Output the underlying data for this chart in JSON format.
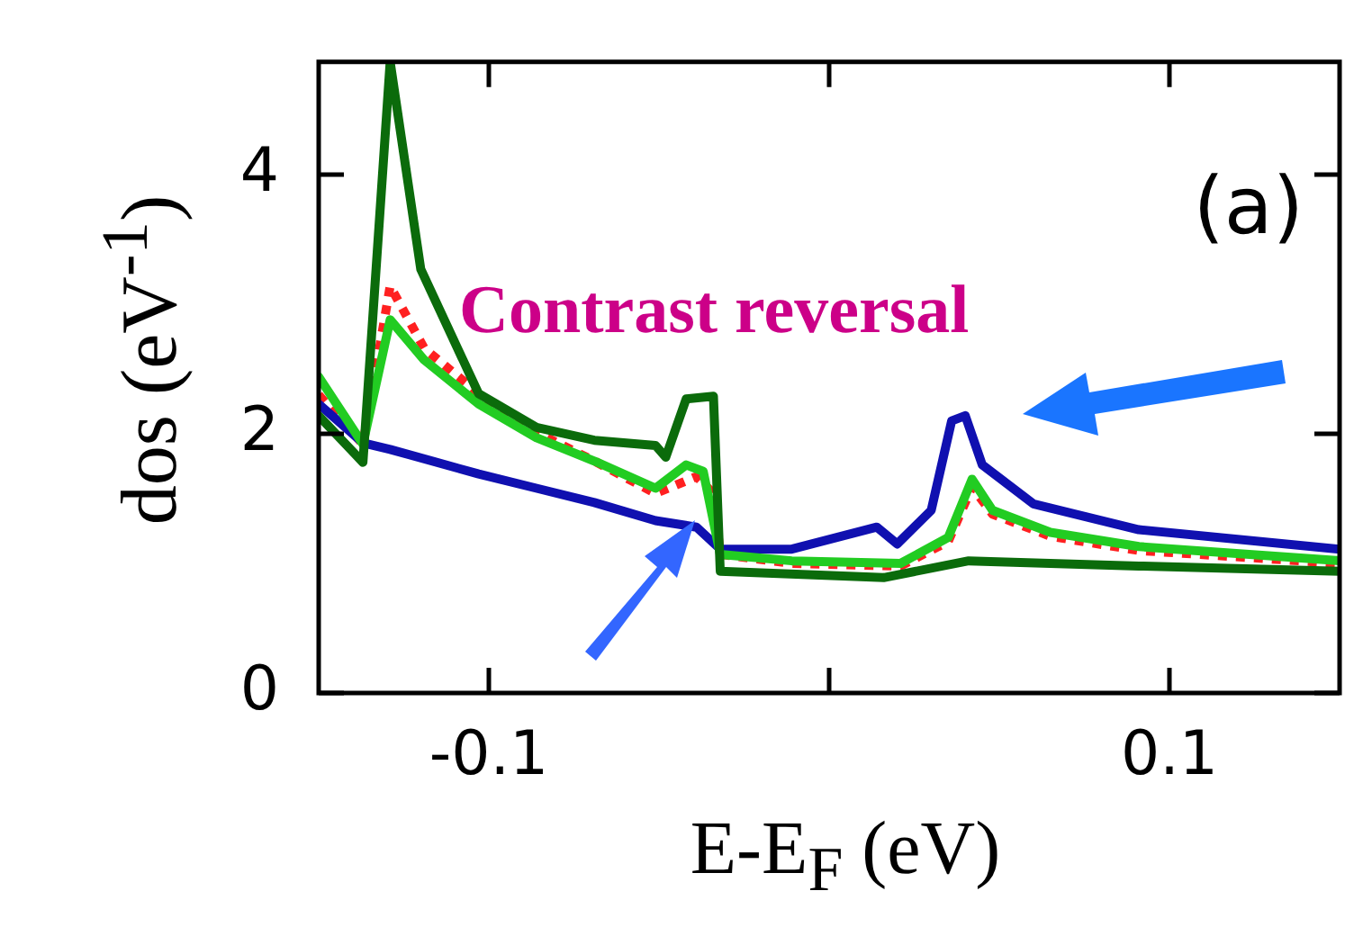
{
  "chart_data": {
    "type": "line",
    "xlabel": "E-E$_{F}$ (eV)",
    "ylabel": "dos (eV$^{-1}$)",
    "annotations": [
      "(a)",
      "Contrast reversal"
    ],
    "xlim": [
      -0.15,
      0.15
    ],
    "xticks": [
      {
        "value": -0.1,
        "label": "-0.1"
      },
      {
        "value": 0,
        "label": null
      },
      {
        "value": 0.1,
        "label": "0.1"
      }
    ],
    "ylim": [
      0,
      4.87
    ],
    "yticks": [
      0,
      2,
      4
    ],
    "grid": false,
    "legend": false,
    "marker": "none",
    "series": [
      {
        "color": "#0b6b0b",
        "line_style": "solid",
        "x": [
          -0.15,
          -0.137,
          -0.129,
          -0.12,
          -0.103,
          -0.086,
          -0.069,
          -0.051,
          -0.048,
          -0.042,
          -0.034,
          -0.032,
          0.016,
          0.041,
          0.091,
          0.15
        ],
        "values": [
          2.14,
          1.78,
          4.87,
          3.27,
          2.31,
          2.05,
          1.95,
          1.91,
          1.82,
          2.27,
          2.29,
          0.94,
          0.89,
          1.02,
          0.98,
          0.94
        ]
      },
      {
        "color": "#22cc22",
        "line_style": "solid",
        "x": [
          -0.15,
          -0.137,
          -0.129,
          -0.119,
          -0.103,
          -0.086,
          -0.069,
          -0.051,
          -0.042,
          -0.037,
          -0.032,
          -0.011,
          0.021,
          0.035,
          0.042,
          0.048,
          0.065,
          0.091,
          0.15
        ],
        "values": [
          2.44,
          1.92,
          2.88,
          2.57,
          2.23,
          1.97,
          1.79,
          1.58,
          1.76,
          1.71,
          1.07,
          1.02,
          1.0,
          1.2,
          1.65,
          1.41,
          1.24,
          1.13,
          1.02
        ]
      },
      {
        "color": "#1010b0",
        "line_style": "solid",
        "x": [
          -0.15,
          -0.137,
          -0.129,
          -0.103,
          -0.086,
          -0.069,
          -0.051,
          -0.039,
          -0.032,
          -0.011,
          0.014,
          0.02,
          0.03,
          0.036,
          0.04,
          0.045,
          0.06,
          0.091,
          0.15
        ],
        "values": [
          2.23,
          1.93,
          1.88,
          1.69,
          1.58,
          1.47,
          1.33,
          1.28,
          1.11,
          1.11,
          1.28,
          1.15,
          1.41,
          2.1,
          2.14,
          1.76,
          1.46,
          1.26,
          1.11
        ]
      },
      {
        "color": "#ff2020",
        "line_style": "dotted",
        "x": [
          -0.15,
          -0.137,
          -0.129,
          -0.119,
          -0.103,
          -0.086,
          -0.069,
          -0.051,
          -0.039,
          -0.034,
          -0.032,
          -0.011,
          0.021,
          0.035,
          0.042,
          0.048,
          0.065,
          0.091,
          0.15
        ],
        "values": [
          2.3,
          1.92,
          3.14,
          2.66,
          2.31,
          2.01,
          1.79,
          1.54,
          1.67,
          1.54,
          1.07,
          1.0,
          0.98,
          1.17,
          1.59,
          1.38,
          1.21,
          1.1,
          1.0
        ]
      }
    ]
  }
}
